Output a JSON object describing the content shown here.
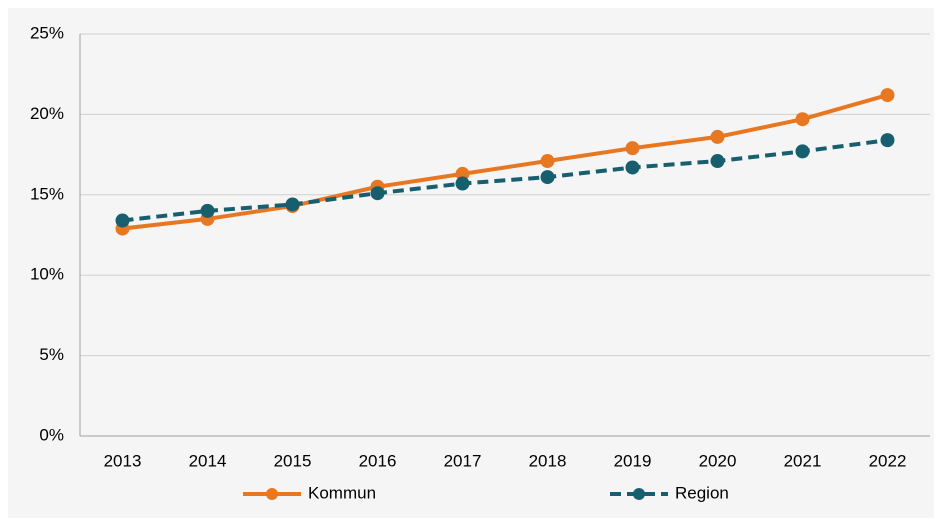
{
  "chart_data": {
    "type": "line",
    "categories": [
      "2013",
      "2014",
      "2015",
      "2016",
      "2017",
      "2018",
      "2019",
      "2020",
      "2021",
      "2022"
    ],
    "series": [
      {
        "name": "Kommun",
        "color": "#e87722",
        "dashed": false,
        "values": [
          12.9,
          13.5,
          14.3,
          15.5,
          16.3,
          17.1,
          17.9,
          18.6,
          19.7,
          21.2
        ]
      },
      {
        "name": "Region",
        "color": "#175f6e",
        "dashed": true,
        "values": [
          13.4,
          14.0,
          14.4,
          15.1,
          15.7,
          16.1,
          16.7,
          17.1,
          17.7,
          18.4
        ]
      }
    ],
    "ylim": [
      0,
      25
    ],
    "yticks": [
      {
        "value": 0,
        "label": "0%"
      },
      {
        "value": 5,
        "label": "5%"
      },
      {
        "value": 10,
        "label": "10%"
      },
      {
        "value": 15,
        "label": "15%"
      },
      {
        "value": 20,
        "label": "20%"
      },
      {
        "value": 25,
        "label": "25%"
      }
    ],
    "grid": true,
    "legend": "bottom"
  }
}
